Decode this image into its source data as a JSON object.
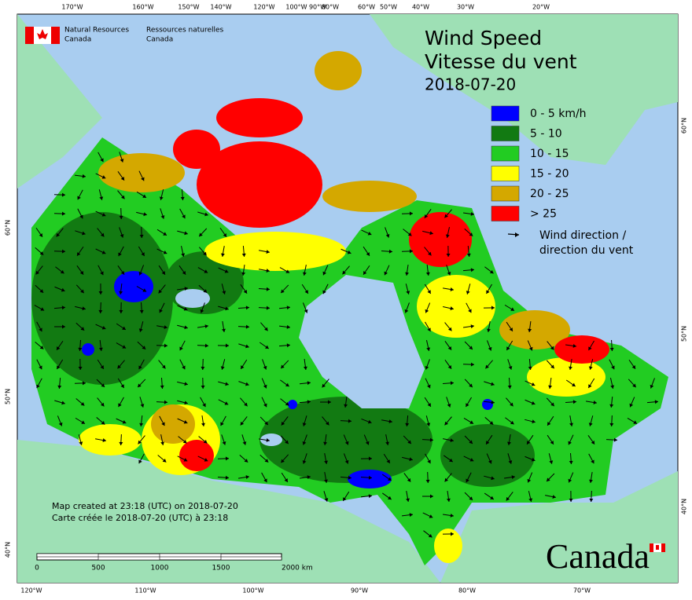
{
  "org": {
    "en": [
      "Natural Resources",
      "Canada"
    ],
    "fr": [
      "Ressources naturelles",
      "Canada"
    ]
  },
  "title": [
    "Wind Speed",
    "Vitesse du vent"
  ],
  "date": "2018-07-20",
  "legend": {
    "items": [
      {
        "label": "0 - 5 km/h",
        "color": "#0000ff"
      },
      {
        "label": "5 - 10",
        "color": "#127a12"
      },
      {
        "label": "10 - 15",
        "color": "#22cc22"
      },
      {
        "label": "15 - 20",
        "color": "#ffff00"
      },
      {
        "label": "20 - 25",
        "color": "#d4a800"
      },
      {
        "label": "> 25",
        "color": "#ff0000"
      }
    ],
    "direction": [
      "Wind direction /",
      "direction du vent"
    ]
  },
  "graticule": {
    "top": [
      "170°W",
      "160°W",
      "150°W",
      "140°W",
      "120°W",
      "100°W",
      "90°W",
      "80°W",
      "60°W",
      "50°W",
      "40°W",
      "30°W",
      "20°W"
    ],
    "bottom": [
      "120°W",
      "110°W",
      "100°W",
      "90°W",
      "80°W",
      "70°W"
    ],
    "left": [
      "60°N",
      "50°N",
      "40°N"
    ],
    "right": [
      "60°N",
      "50°N",
      "40°N"
    ]
  },
  "scale_bar": [
    "0",
    "500",
    "1000",
    "1500",
    "2000 km"
  ],
  "credit": [
    "Map created at 23:18 (UTC) on 2018-07-20",
    "Carte créée le 2018-07-20 (UTC) à 23:18"
  ],
  "wordmark": "Canada"
}
